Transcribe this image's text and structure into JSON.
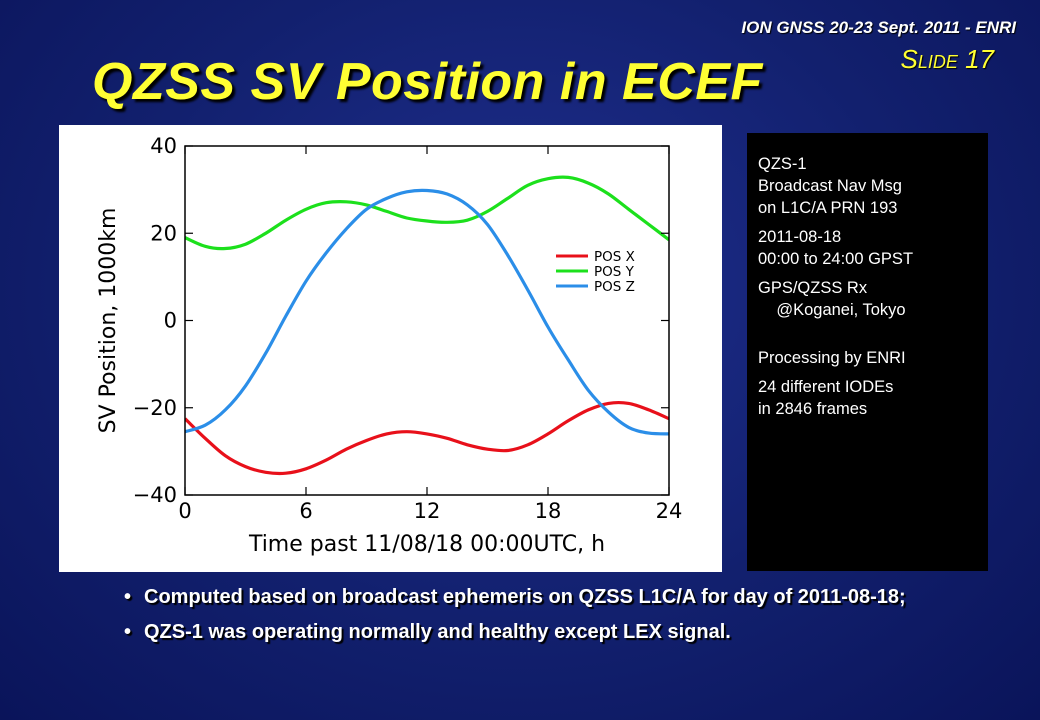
{
  "header": {
    "meta": "ION GNSS 20-23 Sept. 2011 - ENRI",
    "slide": "Slide 17",
    "title": "QZSS SV Position in ECEF"
  },
  "info": {
    "lines": [
      "QZS-1\nBroadcast Nav Msg\non L1C/A PRN 193",
      "2011-08-18\n00:00 to 24:00 GPST",
      "GPS/QZSS Rx\n    @Koganei, Tokyo",
      "Processing by ENRI",
      "24 different IODEs\nin 2846 frames"
    ]
  },
  "bullets": [
    "Computed based on broadcast ephemeris on QZSS L1C/A for day of 2011-08-18;",
    "QZS-1 was operating normally and healthy except LEX signal."
  ],
  "chart_data": {
    "type": "line",
    "xlabel": "Time past 11/08/18 00:00UTC, h",
    "ylabel": "SV Position, 1000km",
    "xlim": [
      0,
      24
    ],
    "ylim": [
      -40,
      40
    ],
    "xticks": [
      0,
      6,
      12,
      18,
      24
    ],
    "yticks": [
      -40,
      -20,
      0,
      20,
      40
    ],
    "ytick_labels": [
      "−40",
      "−20",
      "0",
      "20",
      "40"
    ],
    "legend_position": "right",
    "grid": false,
    "x": [
      0,
      1,
      2,
      3,
      4,
      5,
      6,
      7,
      8,
      9,
      10,
      11,
      12,
      13,
      14,
      15,
      16,
      17,
      18,
      19,
      20,
      21,
      22,
      23,
      24
    ],
    "series": [
      {
        "name": "POS X",
        "color": "#e8101a",
        "values": [
          -22.5,
          -27,
          -31,
          -33.5,
          -34.8,
          -35,
          -34,
          -32,
          -29.5,
          -27.5,
          -26,
          -25.5,
          -26,
          -27,
          -28.5,
          -29.5,
          -29.8,
          -28.5,
          -26,
          -23,
          -20.5,
          -19,
          -19,
          -20.5,
          -22.5
        ]
      },
      {
        "name": "POS Y",
        "color": "#1ce01c",
        "values": [
          19,
          17,
          16.5,
          17.5,
          20,
          23,
          25.5,
          27,
          27.2,
          26.5,
          25,
          23.5,
          22.8,
          22.5,
          23,
          25,
          28,
          31,
          32.5,
          32.8,
          31.5,
          29,
          25.5,
          22,
          18.5
        ]
      },
      {
        "name": "POS Z",
        "color": "#2b8ee8",
        "values": [
          -25.5,
          -24,
          -20.5,
          -15,
          -7.5,
          1,
          9,
          15.5,
          21,
          25.5,
          28,
          29.5,
          29.8,
          29,
          26.5,
          22,
          15,
          7,
          -1.5,
          -9,
          -16,
          -21,
          -24.5,
          -25.8,
          -26
        ]
      }
    ]
  }
}
